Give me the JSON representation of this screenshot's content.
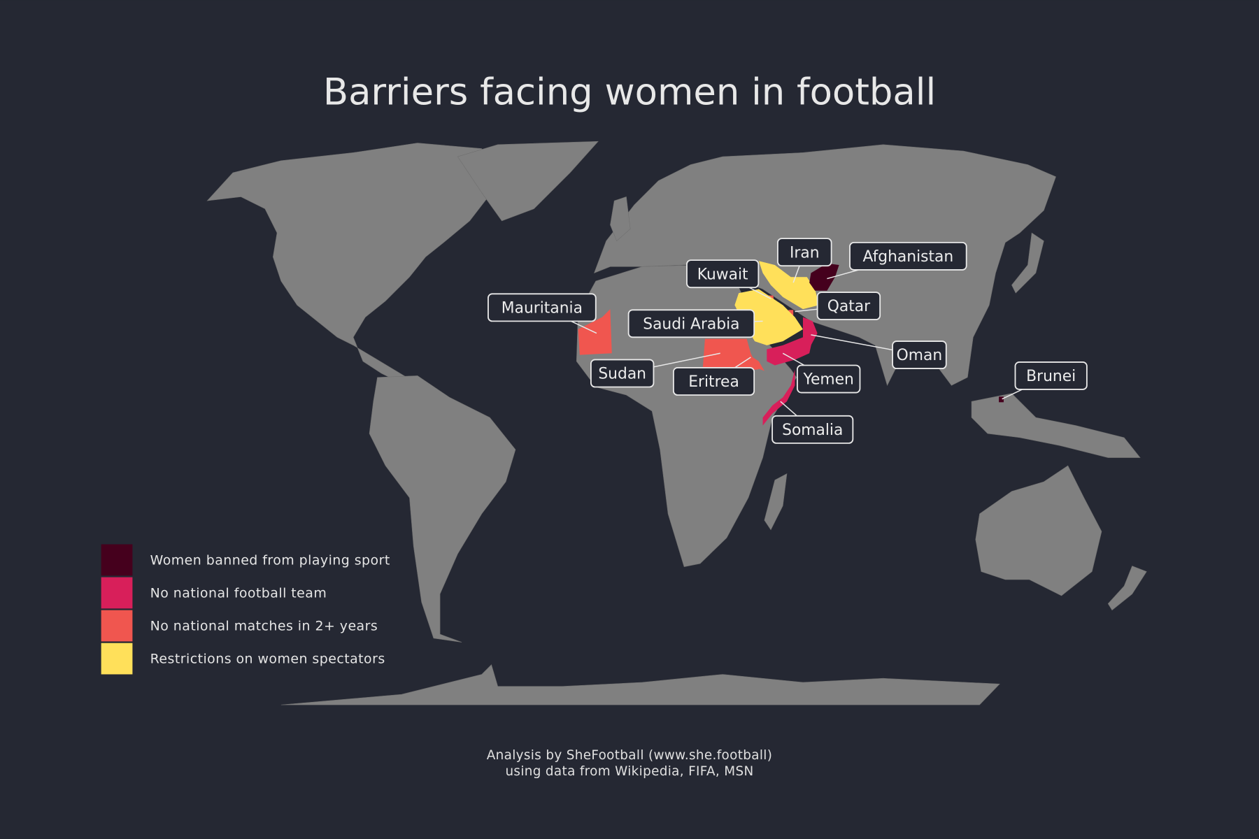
{
  "title": "Barriers facing women in football",
  "colors": {
    "background": "#252833",
    "land": "#808080",
    "banned": "#45001d",
    "no_team": "#d81f5a",
    "no_matches": "#f0564f",
    "spectators": "#ffe05a"
  },
  "legend": [
    {
      "key": "banned",
      "label": "Women banned from playing sport",
      "color": "#45001d"
    },
    {
      "key": "no_team",
      "label": "No national football team",
      "color": "#d81f5a"
    },
    {
      "key": "no_matches",
      "label": "No national matches in 2+ years",
      "color": "#f0564f"
    },
    {
      "key": "spectators",
      "label": "Restrictions on women spectators",
      "color": "#ffe05a"
    }
  ],
  "countries": [
    {
      "name": "Iran",
      "category": "spectators"
    },
    {
      "name": "Afghanistan",
      "category": "banned"
    },
    {
      "name": "Kuwait",
      "category": "no_matches"
    },
    {
      "name": "Qatar",
      "category": "no_matches"
    },
    {
      "name": "Mauritania",
      "category": "no_matches"
    },
    {
      "name": "Saudi Arabia",
      "category": "spectators"
    },
    {
      "name": "Oman",
      "category": "no_team"
    },
    {
      "name": "Sudan",
      "category": "no_matches"
    },
    {
      "name": "Eritrea",
      "category": "no_matches"
    },
    {
      "name": "Yemen",
      "category": "no_team"
    },
    {
      "name": "Somalia",
      "category": "no_team"
    },
    {
      "name": "Brunei",
      "category": "banned"
    }
  ],
  "footer": {
    "line1": "Analysis by SheFootball (www.she.football)",
    "line2": "using data from Wikipedia, FIFA, MSN"
  }
}
